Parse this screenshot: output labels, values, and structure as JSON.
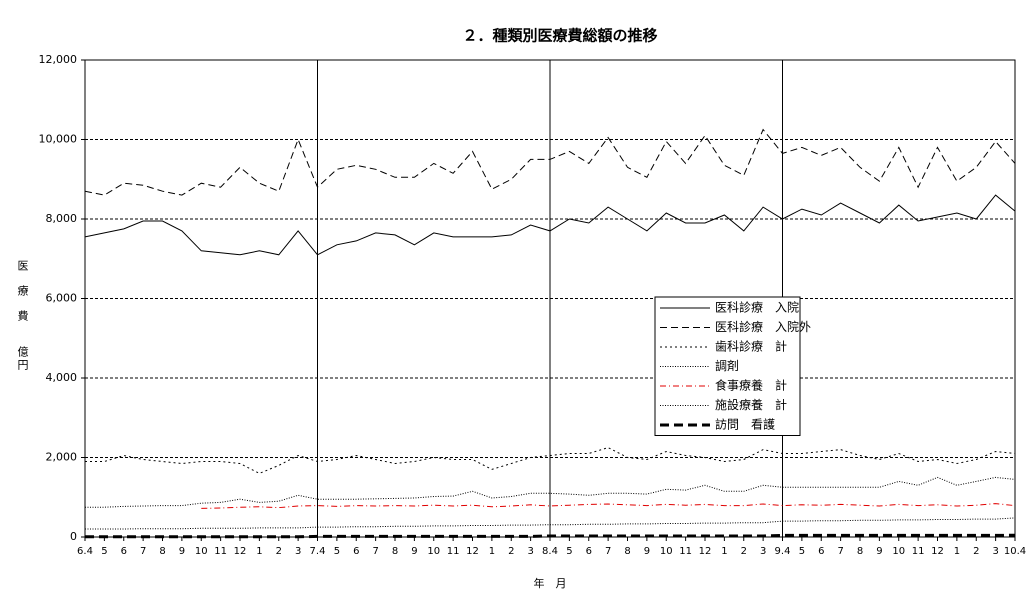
{
  "chart_data": {
    "type": "line",
    "title": "２．種類別医療費総額の推移",
    "y_label": "医療費",
    "y_unit": "億円",
    "x_label": "年　月",
    "categories": [
      "6.4",
      "5",
      "6",
      "7",
      "8",
      "9",
      "10",
      "11",
      "12",
      "1",
      "2",
      "3",
      "7.4",
      "5",
      "6",
      "7",
      "8",
      "9",
      "10",
      "11",
      "12",
      "1",
      "2",
      "3",
      "8.4",
      "5",
      "6",
      "7",
      "8",
      "9",
      "10",
      "11",
      "12",
      "1",
      "2",
      "3",
      "9.4",
      "5",
      "6",
      "7",
      "8",
      "9",
      "10",
      "11",
      "12",
      "1",
      "2",
      "3",
      "10.4"
    ],
    "ylim": [
      0,
      12000
    ],
    "yticks": [
      0,
      {
        "value": 2000,
        "label": "2,000"
      },
      {
        "value": 4000,
        "label": "4,000"
      },
      {
        "value": 6000,
        "label": "6,000"
      },
      {
        "value": 8000,
        "label": "8,000"
      },
      {
        "value": 10000,
        "label": "10,000"
      },
      {
        "value": 12000,
        "label": "12,000"
      }
    ],
    "grid": true,
    "legend": "center-right",
    "series": [
      {
        "name": "医科診療　入院",
        "color": "#000000",
        "style": "solid",
        "values": [
          7550,
          7650,
          7750,
          7950,
          7950,
          7700,
          7200,
          7150,
          7100,
          7200,
          7100,
          7700,
          7100,
          7350,
          7450,
          7650,
          7600,
          7350,
          7650,
          7550,
          7550,
          7550,
          7600,
          7850,
          7700,
          8000,
          7900,
          8300,
          8000,
          7700,
          8150,
          7900,
          7900,
          8100,
          7700,
          8300,
          8000,
          8250,
          8100,
          8400,
          8150,
          7900,
          8350,
          7950,
          8050,
          8150,
          8000,
          8600,
          8200
        ]
      },
      {
        "name": "医科診療　入院外",
        "color": "#000000",
        "style": "dashed",
        "values": [
          8700,
          8600,
          8900,
          8850,
          8700,
          8600,
          8900,
          8800,
          9300,
          8900,
          8700,
          10000,
          8800,
          9250,
          9350,
          9250,
          9050,
          9050,
          9400,
          9150,
          9700,
          8750,
          9000,
          9500,
          9500,
          9700,
          9400,
          10050,
          9300,
          9050,
          9950,
          9400,
          10100,
          9350,
          9100,
          10250,
          9650,
          9800,
          9600,
          9800,
          9300,
          8950,
          9800,
          8800,
          9800,
          8950,
          9300,
          9950,
          9400
        ]
      },
      {
        "name": "歯科診療　計",
        "color": "#000000",
        "style": "dotted",
        "values": [
          1900,
          1900,
          2050,
          1950,
          1900,
          1850,
          1900,
          1900,
          1850,
          1600,
          1800,
          2050,
          1900,
          1950,
          2050,
          1950,
          1850,
          1900,
          2000,
          1950,
          1950,
          1700,
          1850,
          2000,
          2050,
          2100,
          2100,
          2250,
          2000,
          1950,
          2150,
          2050,
          2000,
          1900,
          1950,
          2200,
          2100,
          2100,
          2150,
          2200,
          2050,
          1950,
          2100,
          1900,
          1950,
          1850,
          1950,
          2150,
          2100
        ]
      },
      {
        "name": "調剤",
        "color": "#000000",
        "style": "fine",
        "values": [
          750,
          750,
          770,
          780,
          790,
          790,
          850,
          870,
          950,
          870,
          900,
          1050,
          950,
          950,
          950,
          960,
          970,
          980,
          1020,
          1030,
          1150,
          980,
          1020,
          1100,
          1100,
          1080,
          1050,
          1100,
          1100,
          1080,
          1200,
          1180,
          1300,
          1150,
          1150,
          1300,
          1250,
          1250,
          1250,
          1250,
          1250,
          1250,
          1400,
          1300,
          1500,
          1300,
          1400,
          1500,
          1450
        ]
      },
      {
        "name": "食事療養　計",
        "color": "#e00000",
        "style": "dashdot",
        "values": [
          null,
          null,
          null,
          null,
          null,
          null,
          720,
          730,
          750,
          760,
          740,
          780,
          790,
          770,
          790,
          780,
          790,
          780,
          800,
          780,
          800,
          760,
          780,
          810,
          780,
          800,
          820,
          830,
          810,
          790,
          820,
          800,
          820,
          790,
          790,
          830,
          790,
          810,
          800,
          820,
          800,
          780,
          820,
          790,
          810,
          780,
          800,
          840,
          790
        ]
      },
      {
        "name": "施設療養　計",
        "color": "#000000",
        "style": "fine",
        "values": [
          200,
          200,
          200,
          210,
          210,
          210,
          220,
          220,
          220,
          230,
          230,
          230,
          250,
          250,
          260,
          260,
          270,
          270,
          280,
          280,
          290,
          290,
          300,
          300,
          310,
          310,
          320,
          320,
          330,
          330,
          340,
          340,
          350,
          350,
          360,
          360,
          400,
          400,
          410,
          410,
          420,
          420,
          430,
          430,
          440,
          440,
          450,
          450,
          480
        ]
      },
      {
        "name": "訪問　看護",
        "color": "#000000",
        "style": "thick",
        "values": [
          5,
          5,
          5,
          5,
          5,
          5,
          5,
          5,
          5,
          5,
          5,
          5,
          15,
          15,
          15,
          15,
          15,
          15,
          15,
          15,
          15,
          15,
          15,
          15,
          25,
          25,
          25,
          25,
          25,
          25,
          25,
          25,
          25,
          25,
          25,
          25,
          40,
          40,
          40,
          40,
          40,
          40,
          40,
          40,
          40,
          40,
          40,
          40,
          45
        ]
      }
    ]
  }
}
